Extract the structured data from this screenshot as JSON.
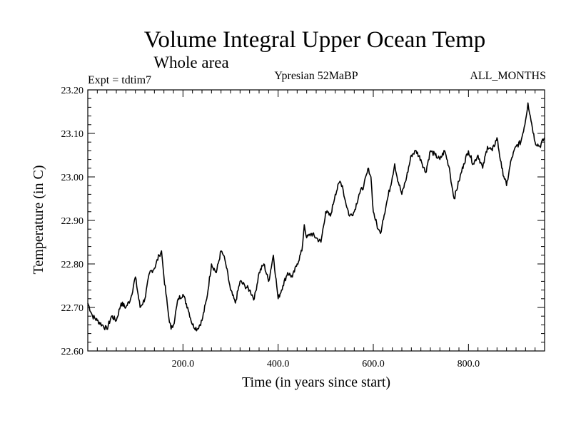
{
  "chart_data": {
    "type": "line",
    "title": "Volume Integral Upper Ocean Temp",
    "subtitle": "Whole area",
    "expt_label": "Expt = tdtim7",
    "period_label": "Ypresian  52MaBP",
    "months_label": "ALL_MONTHS",
    "xlabel": "Time (in years since start)",
    "ylabel": "Temperature (in C)",
    "xlim": [
      0,
      960
    ],
    "ylim": [
      22.6,
      23.2
    ],
    "x_ticks": [
      200,
      400,
      600,
      800
    ],
    "x_tick_labels": [
      "200.0",
      "400.0",
      "600.0",
      "800.0"
    ],
    "y_ticks": [
      22.6,
      22.7,
      22.8,
      22.9,
      23.0,
      23.1,
      23.2
    ],
    "y_tick_labels": [
      "22.60",
      "22.70",
      "22.80",
      "22.90",
      "23.00",
      "23.10",
      "23.20"
    ],
    "series": [
      {
        "name": "Volume integral upper ocean temperature",
        "x": [
          0,
          10,
          20,
          30,
          40,
          50,
          60,
          70,
          80,
          90,
          100,
          110,
          120,
          130,
          140,
          150,
          155,
          160,
          170,
          175,
          180,
          190,
          200,
          210,
          220,
          230,
          240,
          250,
          260,
          270,
          280,
          285,
          290,
          300,
          310,
          320,
          330,
          340,
          350,
          360,
          370,
          380,
          390,
          400,
          410,
          420,
          430,
          440,
          450,
          455,
          460,
          470,
          480,
          490,
          500,
          510,
          520,
          530,
          535,
          540,
          550,
          560,
          570,
          580,
          590,
          595,
          600,
          610,
          615,
          620,
          630,
          640,
          645,
          650,
          660,
          670,
          680,
          690,
          700,
          710,
          720,
          730,
          740,
          750,
          760,
          765,
          770,
          780,
          790,
          800,
          810,
          820,
          830,
          840,
          850,
          860,
          870,
          880,
          890,
          900,
          910,
          920,
          925,
          930,
          940,
          950,
          960
        ],
        "y": [
          22.71,
          22.68,
          22.67,
          22.66,
          22.65,
          22.68,
          22.67,
          22.71,
          22.7,
          22.72,
          22.77,
          22.7,
          22.72,
          22.78,
          22.79,
          22.82,
          22.83,
          22.77,
          22.68,
          22.65,
          22.66,
          22.72,
          22.73,
          22.7,
          22.66,
          22.65,
          22.67,
          22.72,
          22.8,
          22.78,
          22.83,
          22.82,
          22.8,
          22.74,
          22.71,
          22.76,
          22.75,
          22.74,
          22.72,
          22.78,
          22.8,
          22.76,
          22.82,
          22.72,
          22.75,
          22.78,
          22.77,
          22.8,
          22.83,
          22.89,
          22.86,
          22.87,
          22.86,
          22.85,
          22.92,
          22.91,
          22.96,
          22.99,
          22.98,
          22.95,
          22.91,
          22.92,
          22.96,
          22.98,
          23.02,
          23.0,
          22.92,
          22.88,
          22.87,
          22.9,
          22.95,
          23.0,
          23.03,
          23.0,
          22.96,
          23.0,
          23.05,
          23.06,
          23.04,
          23.01,
          23.06,
          23.05,
          23.04,
          23.06,
          23.02,
          22.98,
          22.95,
          22.99,
          23.03,
          23.06,
          23.03,
          23.05,
          23.02,
          23.07,
          23.06,
          23.09,
          23.02,
          22.98,
          23.04,
          23.07,
          23.08,
          23.13,
          23.17,
          23.14,
          23.08,
          23.07,
          23.09
        ]
      }
    ]
  }
}
